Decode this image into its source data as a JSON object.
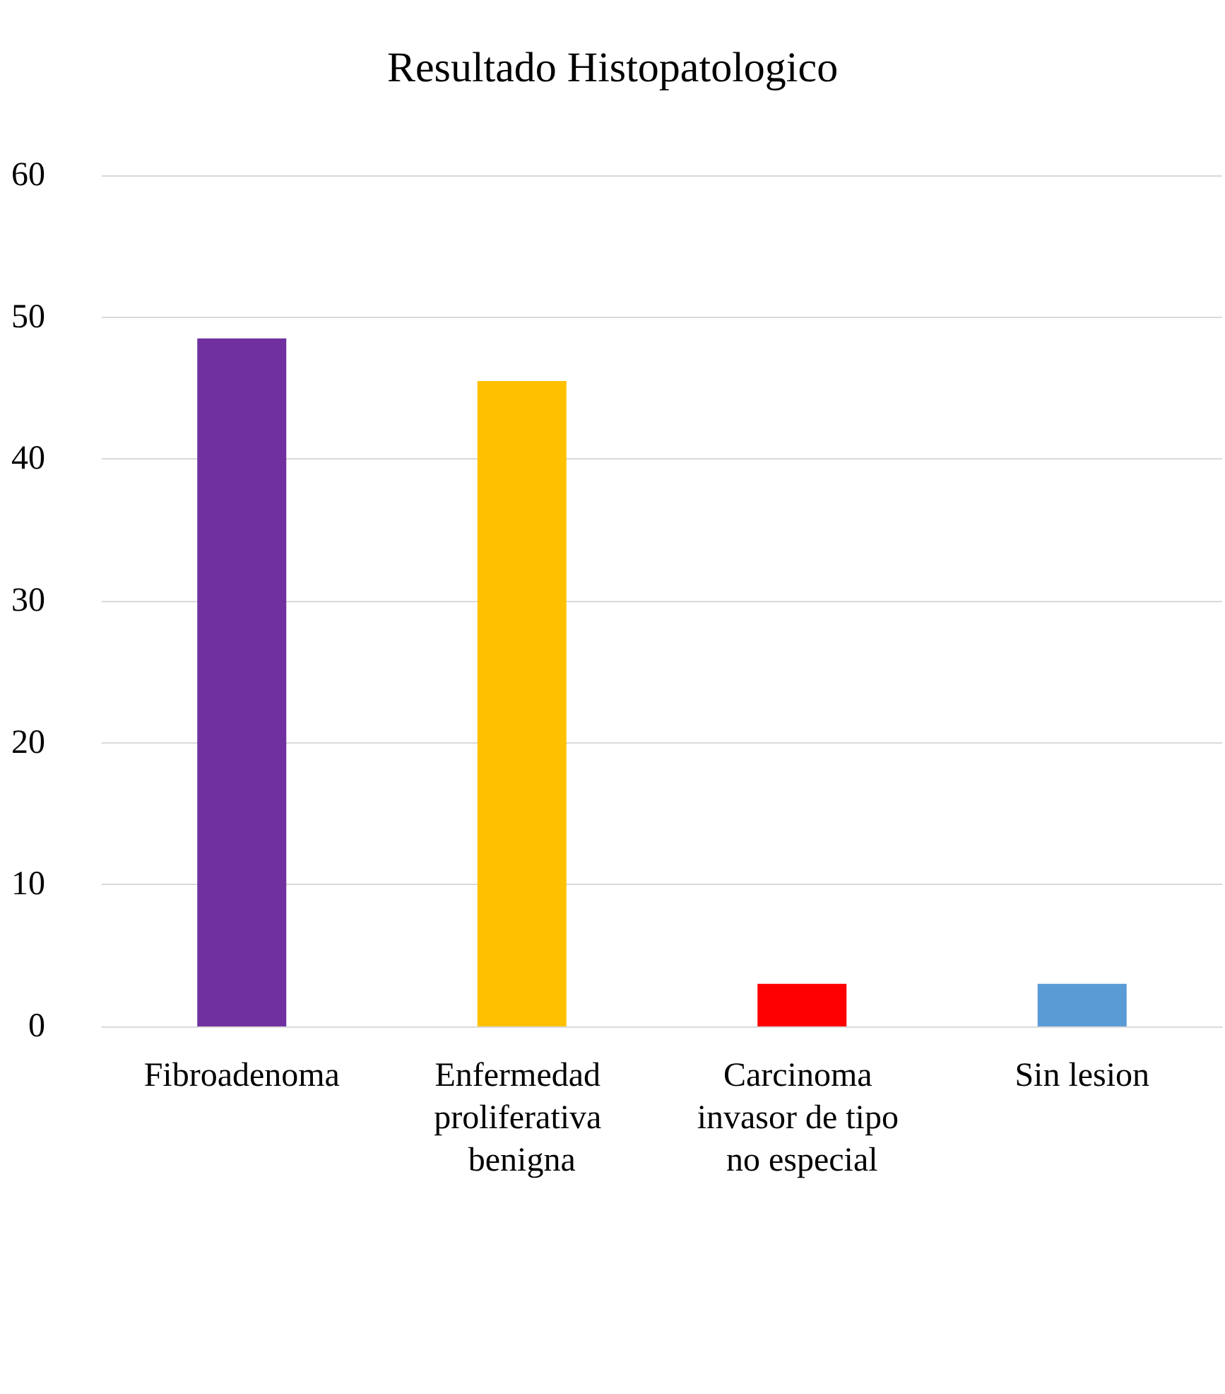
{
  "chart_data": {
    "type": "bar",
    "title": "Resultado Histopatologico",
    "categories": [
      "Fibroadenoma",
      "Enfermedad proliferativa benigna",
      "Carcinoma invasor de tipo no especial",
      "Sin lesion"
    ],
    "values": [
      48.5,
      45.5,
      3,
      3
    ],
    "colors": [
      "#7030a0",
      "#ffc000",
      "#ff0000",
      "#5b9bd5"
    ],
    "ylim": [
      0,
      60
    ],
    "yticks": [
      0,
      10,
      20,
      30,
      40,
      50,
      60
    ],
    "grid": "y"
  }
}
